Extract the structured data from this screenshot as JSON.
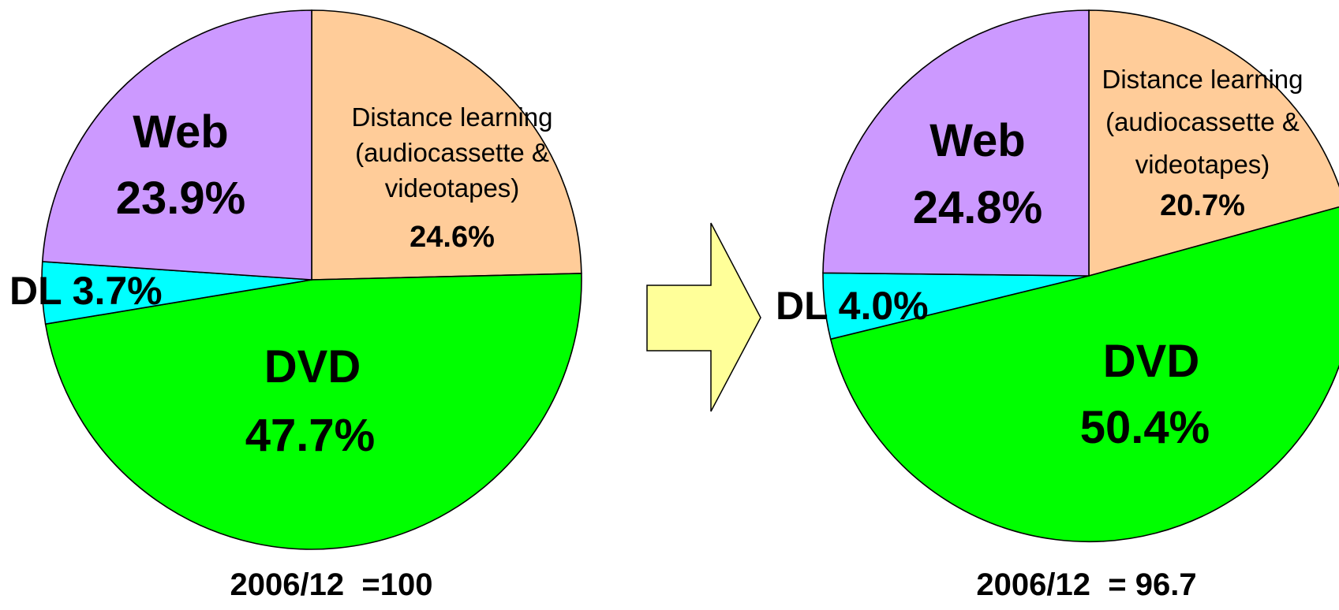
{
  "colors": {
    "Distance learning": "#FFCC99",
    "DVD": "#00FF00",
    "DL": "#00FFFF",
    "Web": "#CC99FF",
    "arrow": "#FFFF99",
    "outline": "#000000"
  },
  "chart_data": [
    {
      "type": "pie",
      "title": "",
      "caption": "2006/12  =100",
      "total": 100,
      "slices": [
        {
          "name": "Distance learning",
          "label_lines": [
            "Distance learning",
            "(audiocassette &",
            "videotapes)"
          ],
          "value_label": "24.6%",
          "value": 24.6
        },
        {
          "name": "DVD",
          "label_lines": [
            "DVD"
          ],
          "value_label": "47.7%",
          "value": 47.7
        },
        {
          "name": "DL",
          "label_lines": [
            "DL 3.7%"
          ],
          "value_label": "",
          "value": 3.7
        },
        {
          "name": "Web",
          "label_lines": [
            "Web"
          ],
          "value_label": "23.9%",
          "value": 23.9
        }
      ]
    },
    {
      "type": "pie",
      "title": "",
      "caption": "2006/12  = 96.7",
      "total": 96.7,
      "slices": [
        {
          "name": "Distance learning",
          "label_lines": [
            "Distance learning",
            "(audiocassette &",
            "videotapes)"
          ],
          "value_label": "20.7%",
          "value": 20.7
        },
        {
          "name": "DVD",
          "label_lines": [
            "DVD"
          ],
          "value_label": "50.4%",
          "value": 50.4
        },
        {
          "name": "DL",
          "label_lines": [
            "DL 4.0%"
          ],
          "value_label": "",
          "value": 4.0
        },
        {
          "name": "Web",
          "label_lines": [
            "Web"
          ],
          "value_label": "24.8%",
          "value": 24.8
        }
      ]
    }
  ]
}
